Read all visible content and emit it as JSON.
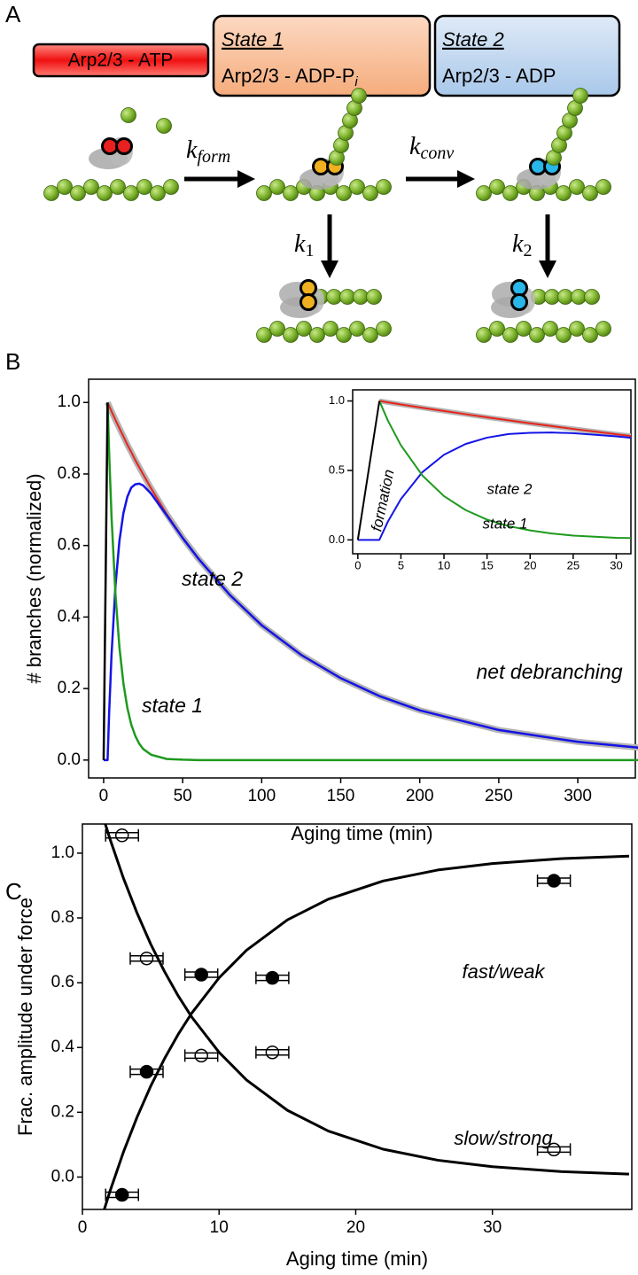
{
  "panel_labels": [
    "A",
    "B",
    "C"
  ],
  "panel_a": {
    "states": [
      {
        "text": "Arp2/3 - ATP"
      },
      {
        "title": "State 1",
        "text": "Arp2/3 - ADP-P",
        "sub": "i"
      },
      {
        "title": "State 2",
        "text": "Arp2/3 - ADP"
      }
    ],
    "rates": [
      {
        "base": "k",
        "sub": "form"
      },
      {
        "base": "k",
        "sub": "conv"
      },
      {
        "base": "k",
        "sub": "1"
      },
      {
        "base": "k",
        "sub": "2"
      }
    ]
  },
  "chart_data": [
    {
      "type": "line",
      "x_label": "Aging time (min)",
      "y_label": "# branches (normalized)",
      "xlim": [
        -9.5,
        336.4
      ],
      "ylim": [
        -0.05,
        1.065
      ],
      "xticks": [
        0,
        50,
        100,
        150,
        200,
        250,
        300
      ],
      "yticks": [
        {
          "value": 0,
          "label": "0.0"
        },
        0.2,
        0.4,
        0.6,
        0.8,
        {
          "value": 1,
          "label": "1.0"
        }
      ],
      "series": [
        {
          "color": "#b4b4b4",
          "width": 7,
          "x": [
            2.5,
            3.5,
            5,
            7.5,
            10,
            12.5,
            15,
            17.5,
            20,
            22.5,
            25,
            30,
            40,
            50,
            60,
            80,
            100,
            125,
            150,
            175,
            200,
            250,
            300,
            340
          ],
          "values": [
            1,
            0.99,
            0.975,
            0.951,
            0.928,
            0.905,
            0.882,
            0.861,
            0.839,
            0.819,
            0.799,
            0.76,
            0.687,
            0.622,
            0.563,
            0.461,
            0.377,
            0.294,
            0.229,
            0.178,
            0.139,
            0.084,
            0.051,
            0.034
          ]
        },
        {
          "color": "#e8241c",
          "width": 2,
          "x": [
            2.5,
            3.5,
            5,
            7.5,
            10,
            12.5,
            15,
            17.5,
            20,
            22.5,
            25,
            30,
            40,
            50,
            60,
            80,
            100,
            125,
            150,
            175,
            200,
            250,
            300,
            340
          ],
          "values": [
            1,
            0.99,
            0.975,
            0.951,
            0.928,
            0.905,
            0.882,
            0.861,
            0.839,
            0.819,
            0.799,
            0.76,
            0.687,
            0.622,
            0.563,
            0.461,
            0.377,
            0.294,
            0.229,
            0.178,
            0.139,
            0.084,
            0.051,
            0.034
          ]
        },
        {
          "color": "#1414e6",
          "width": 2.5,
          "x": [
            0,
            2.5,
            3.5,
            5,
            7.5,
            10,
            12.5,
            15,
            17.5,
            20,
            22.5,
            25,
            30,
            40,
            50,
            60,
            80,
            100,
            125,
            150,
            175,
            200,
            250,
            300,
            340
          ],
          "values": [
            0,
            0,
            0.133,
            0.294,
            0.488,
            0.613,
            0.69,
            0.736,
            0.762,
            0.771,
            0.773,
            0.768,
            0.745,
            0.684,
            0.621,
            0.563,
            0.461,
            0.377,
            0.294,
            0.229,
            0.178,
            0.139,
            0.084,
            0.051,
            0.034
          ]
        },
        {
          "color": "#1e9a1e",
          "width": 2.5,
          "x": [
            2.5,
            3.5,
            5,
            7.5,
            10,
            12.5,
            15,
            17.5,
            20,
            22.5,
            25,
            30,
            40,
            50,
            60,
            340
          ],
          "values": [
            1,
            0.857,
            0.681,
            0.463,
            0.315,
            0.215,
            0.146,
            0.099,
            0.068,
            0.046,
            0.031,
            0.015,
            0.003,
            0.001,
            0,
            0
          ]
        },
        {
          "color": "#000000",
          "width": 2.5,
          "x": [
            0,
            2.5
          ],
          "values": [
            0,
            1
          ]
        }
      ],
      "annotations": [
        {
          "text": "state 2",
          "color": "#1414e6"
        },
        {
          "text": "state 1",
          "color": "#1e9a1e"
        },
        {
          "text": "net debranching",
          "color": "#000000"
        }
      ],
      "inset": {
        "xlim": [
          -0.6,
          31.7
        ],
        "ylim": [
          -0.1,
          1.08
        ],
        "xticks": [
          0,
          5,
          10,
          15,
          20,
          25,
          30
        ],
        "yticks": [
          {
            "value": 0,
            "label": "0.0"
          },
          0.5,
          {
            "value": 1,
            "label": "1.0"
          }
        ],
        "annotations": [
          {
            "text": "state 2",
            "color": "#1414e6"
          },
          {
            "text": "state 1",
            "color": "#1e9a1e"
          },
          {
            "text": "formation",
            "color": "#000000"
          }
        ]
      }
    },
    {
      "type": "scatter",
      "x_label": "Aging time (min)",
      "y_label": "Frac. amplitude under force",
      "xlim": [
        0,
        40.2
      ],
      "ylim": [
        -0.1,
        1.09
      ],
      "xticks": [
        0,
        10,
        20,
        30
      ],
      "yticks": [
        {
          "value": 0,
          "label": "0.0"
        },
        0.2,
        0.4,
        0.6,
        0.8,
        {
          "value": 1,
          "label": "1.0"
        }
      ],
      "series": [
        {
          "marker": "filled",
          "color": "#000000",
          "x": [
            2.9,
            4.7,
            8.7,
            13.9,
            34.5
          ],
          "values": [
            -0.055,
            0.325,
            0.625,
            0.615,
            0.915
          ],
          "xerr": [
            1.2,
            1.2,
            1.2,
            1.2,
            1.2
          ]
        },
        {
          "marker": "open",
          "color": "#000000",
          "x": [
            2.9,
            4.7,
            8.7,
            13.9,
            34.5
          ],
          "values": [
            1.055,
            0.675,
            0.375,
            0.385,
            0.085
          ],
          "xerr": [
            1.2,
            1.2,
            1.2,
            1.2,
            1.2
          ]
        }
      ],
      "curve_x": [
        1.6,
        2,
        3,
        4,
        5,
        6,
        7,
        8,
        10,
        12,
        15,
        18,
        22,
        26,
        30,
        35,
        40
      ],
      "curves": [
        {
          "color": "#000000",
          "values": [
            -0.1,
            -0.046,
            0.077,
            0.185,
            0.281,
            0.365,
            0.44,
            0.506,
            0.615,
            0.7,
            0.794,
            0.858,
            0.914,
            0.948,
            0.968,
            0.983,
            0.991
          ]
        },
        {
          "color": "#000000",
          "values": [
            1.1,
            1.046,
            0.923,
            0.815,
            0.719,
            0.635,
            0.56,
            0.494,
            0.385,
            0.3,
            0.206,
            0.142,
            0.086,
            0.052,
            0.032,
            0.017,
            0.009
          ]
        }
      ],
      "annotations": [
        {
          "text": "fast/weak",
          "color": "#000000"
        },
        {
          "text": "slow/strong",
          "color": "#000000"
        }
      ]
    }
  ]
}
